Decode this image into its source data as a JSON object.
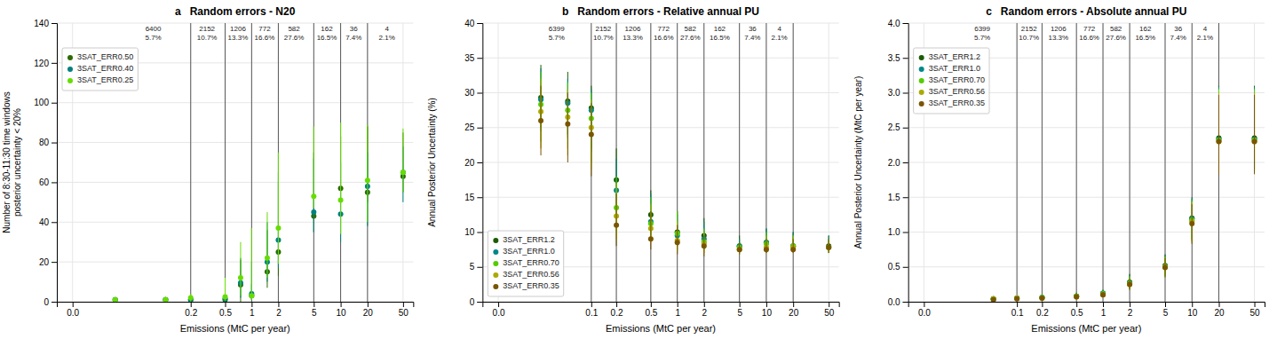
{
  "chart_data": [
    {
      "type": "scatter",
      "title": "a   Random errors - N20",
      "xlabel": "Emissions (MtC per year)",
      "ylabel": "Number of 8:30-11:30 time windows\nposterior uncertainty < 20%",
      "log": "x",
      "xlim": [
        -0.005,
        65
      ],
      "xticks": [
        {
          "value": 0.0,
          "label": "0.0"
        },
        0.2,
        0.5,
        1.0,
        2.0,
        5.0,
        10.0,
        20.0,
        50.0
      ],
      "ylim": [
        0,
        140
      ],
      "yticks": [
        0,
        20,
        40,
        60,
        80,
        100,
        120,
        140
      ],
      "grid": true,
      "legend": "upper left",
      "vlines": [
        0.2,
        0.5,
        1.0,
        2.0,
        5.0,
        10.0,
        20.0
      ],
      "annotations": [
        {
          "x": 0.07,
          "text": [
            "6400",
            "5.7%"
          ]
        },
        {
          "x": 0.31,
          "text": [
            "2152",
            "10.7%"
          ]
        },
        {
          "x": 0.7,
          "text": [
            "1206",
            "13.3%"
          ]
        },
        {
          "x": 1.4,
          "text": [
            "772",
            "16.6%"
          ]
        },
        {
          "x": 3.0,
          "text": [
            "582",
            "27.6%"
          ]
        },
        {
          "x": 7.0,
          "text": [
            "162",
            "16.5%"
          ]
        },
        {
          "x": 14.0,
          "text": [
            "36",
            "7.4%"
          ]
        },
        {
          "x": 33.0,
          "text": [
            "4",
            "2.1%"
          ]
        }
      ],
      "series": [
        {
          "name": "3SAT_ERR0.50",
          "color": "#2d6a00",
          "x": [
            0.02,
            0.1,
            0.2,
            0.5,
            0.75,
            1.0,
            1.5,
            2.0,
            5.0,
            10.0,
            20.0,
            50.0
          ],
          "values": [
            1.0,
            1.0,
            1.0,
            1.0,
            8.5,
            3.0,
            15.0,
            25.0,
            43.0,
            57.0,
            55.0,
            63.0
          ],
          "q1": [
            0.0,
            0.0,
            0.0,
            0.0,
            0.0,
            1.0,
            7.0,
            13.0,
            35.0,
            50.0,
            50.0,
            55.0
          ],
          "q3": [
            2.0,
            2.0,
            2.0,
            3.5,
            21.0,
            9.0,
            36.0,
            60.0,
            75.0,
            83.0,
            88.0,
            85.0
          ]
        },
        {
          "name": "3SAT_ERR0.40",
          "color": "#008080",
          "x": [
            0.02,
            0.1,
            0.2,
            0.5,
            0.75,
            1.0,
            1.5,
            2.0,
            5.0,
            10.0,
            20.0,
            50.0
          ],
          "values": [
            1.0,
            1.0,
            1.0,
            1.5,
            9.5,
            4.0,
            20.0,
            31.0,
            45.0,
            44.0,
            58.0,
            65.0
          ],
          "q1": [
            0.0,
            0.0,
            0.0,
            0.0,
            2.0,
            1.0,
            10.0,
            17.0,
            35.0,
            30.0,
            38.0,
            50.0
          ],
          "q3": [
            2.0,
            2.0,
            2.0,
            5.0,
            22.0,
            20.0,
            40.0,
            65.0,
            72.0,
            70.0,
            75.0,
            78.0
          ]
        },
        {
          "name": "3SAT_ERR0.25",
          "color": "#66dd00",
          "x": [
            0.02,
            0.1,
            0.2,
            0.5,
            0.75,
            1.0,
            1.5,
            2.0,
            5.0,
            10.0,
            20.0,
            50.0
          ],
          "values": [
            1.0,
            1.0,
            2.0,
            2.5,
            12.0,
            3.0,
            22.0,
            37.0,
            53.0,
            51.0,
            61.0,
            65.0
          ],
          "q1": [
            0.0,
            0.0,
            0.0,
            0.5,
            3.0,
            1.0,
            12.0,
            19.0,
            47.0,
            34.0,
            40.0,
            55.0
          ],
          "q3": [
            2.0,
            2.5,
            4.0,
            12.0,
            30.0,
            37.0,
            45.0,
            75.0,
            88.0,
            90.0,
            89.0,
            87.0
          ]
        }
      ]
    },
    {
      "type": "scatter",
      "title": "b   Random errors - Relative annual PU",
      "xlabel": "Emissions (MtC per year)",
      "ylabel": "Annual Posterior Uncertainty (%)",
      "log": "x",
      "xlim": [
        -0.005,
        65
      ],
      "xticks": [
        {
          "value": 0.0,
          "label": "0.0"
        },
        0.1,
        0.2,
        0.5,
        1.0,
        2.0,
        5.0,
        10.0,
        20.0,
        50.0
      ],
      "ylim": [
        0,
        40
      ],
      "yticks": [
        0,
        5,
        10,
        15,
        20,
        25,
        30,
        35,
        40
      ],
      "grid": true,
      "legend": "lower left",
      "vlines": [
        0.1,
        0.2,
        0.5,
        1.0,
        2.0,
        5.0,
        10.0,
        20.0
      ],
      "annotations": [
        {
          "x": 0.035,
          "text": [
            "6399",
            "5.7%"
          ]
        },
        {
          "x": 0.14,
          "text": [
            "2152",
            "10.7%"
          ]
        },
        {
          "x": 0.31,
          "text": [
            "1206",
            "13.3%"
          ]
        },
        {
          "x": 0.7,
          "text": [
            "772",
            "16.6%"
          ]
        },
        {
          "x": 1.4,
          "text": [
            "582",
            "27.6%"
          ]
        },
        {
          "x": 3.0,
          "text": [
            "162",
            "16.5%"
          ]
        },
        {
          "x": 7.0,
          "text": [
            "36",
            "7.4%"
          ]
        },
        {
          "x": 14.0,
          "text": [
            "4",
            "2.1%"
          ]
        }
      ],
      "series": [
        {
          "name": "3SAT_ERR1.2",
          "color": "#1a5c00",
          "x": [
            0.02,
            0.05,
            0.1,
            0.2,
            0.5,
            1.0,
            2.0,
            5.0,
            10.0,
            20.0,
            50.0
          ],
          "values": [
            29.3,
            28.8,
            27.8,
            17.5,
            12.5,
            10.0,
            9.5,
            8.0,
            8.5,
            8.0,
            8.0
          ],
          "q1": [
            25.0,
            24.0,
            22.0,
            13.0,
            10.0,
            8.0,
            8.0,
            7.5,
            7.5,
            7.5,
            7.5
          ],
          "q3": [
            34.0,
            33.0,
            31.0,
            22.0,
            16.0,
            13.0,
            12.0,
            9.5,
            10.5,
            10.0,
            9.5
          ]
        },
        {
          "name": "3SAT_ERR1.0",
          "color": "#008888",
          "x": [
            0.02,
            0.05,
            0.1,
            0.2,
            0.5,
            1.0,
            2.0,
            5.0,
            10.0,
            20.0,
            50.0
          ],
          "values": [
            29.0,
            28.5,
            27.5,
            16.0,
            11.5,
            9.5,
            9.0,
            8.0,
            8.5,
            8.0,
            7.8
          ],
          "q1": [
            24.5,
            23.5,
            21.5,
            12.0,
            9.5,
            8.0,
            7.5,
            7.5,
            7.5,
            7.5,
            7.0
          ],
          "q3": [
            33.5,
            32.0,
            30.5,
            20.5,
            15.5,
            12.5,
            11.5,
            9.0,
            10.5,
            10.0,
            9.5
          ]
        },
        {
          "name": "3SAT_ERR0.70",
          "color": "#55cc00",
          "x": [
            0.02,
            0.05,
            0.1,
            0.2,
            0.5,
            1.0,
            2.0,
            5.0,
            10.0,
            20.0,
            50.0
          ],
          "values": [
            28.3,
            27.5,
            26.3,
            13.5,
            11.2,
            9.8,
            8.6,
            7.8,
            8.3,
            8.0,
            7.8
          ],
          "q1": [
            23.0,
            22.0,
            20.0,
            10.0,
            9.0,
            7.5,
            7.0,
            7.0,
            7.0,
            7.2,
            7.0
          ],
          "q3": [
            33.0,
            31.5,
            30.0,
            18.0,
            15.0,
            13.0,
            10.5,
            8.5,
            10.0,
            9.5,
            9.0
          ]
        },
        {
          "name": "3SAT_ERR0.56",
          "color": "#aaaa00",
          "x": [
            0.02,
            0.05,
            0.1,
            0.2,
            0.5,
            1.0,
            2.0,
            5.0,
            10.0,
            20.0,
            50.0
          ],
          "values": [
            27.3,
            26.5,
            25.0,
            12.3,
            10.5,
            8.8,
            8.3,
            7.5,
            7.8,
            7.8,
            7.8
          ],
          "q1": [
            22.0,
            21.0,
            19.0,
            9.0,
            8.5,
            7.2,
            7.0,
            6.8,
            7.0,
            7.0,
            7.0
          ],
          "q3": [
            32.0,
            30.5,
            29.0,
            17.0,
            14.0,
            11.5,
            10.0,
            8.5,
            9.5,
            9.5,
            9.0
          ]
        },
        {
          "name": "3SAT_ERR0.35",
          "color": "#7a5500",
          "x": [
            0.02,
            0.05,
            0.1,
            0.2,
            0.5,
            1.0,
            2.0,
            5.0,
            10.0,
            20.0,
            50.0
          ],
          "values": [
            26.0,
            25.5,
            24.0,
            11.0,
            9.0,
            8.5,
            8.0,
            7.5,
            7.5,
            7.5,
            7.8
          ],
          "q1": [
            21.0,
            20.0,
            18.0,
            8.0,
            7.5,
            6.8,
            6.5,
            6.8,
            7.0,
            7.0,
            7.0
          ],
          "q3": [
            31.0,
            30.0,
            28.5,
            15.5,
            13.0,
            11.0,
            9.5,
            8.5,
            9.0,
            9.0,
            9.0
          ]
        }
      ]
    },
    {
      "type": "scatter",
      "title": "c   Random errors - Absolute annual PU",
      "xlabel": "Emissions (MtC per year)",
      "ylabel": "Annual Posterior Uncertainty (MtC per year)",
      "log": "x",
      "xlim": [
        -0.005,
        65
      ],
      "xticks": [
        {
          "value": 0.0,
          "label": "0.0"
        },
        0.1,
        0.2,
        0.5,
        1.0,
        2.0,
        5.0,
        10.0,
        20.0,
        50.0
      ],
      "ylim": [
        0,
        4.0
      ],
      "yticks": [
        {
          "value": 0.0,
          "label": "0.0"
        },
        0.5,
        {
          "value": 1.0,
          "label": "1.0"
        },
        1.5,
        {
          "value": 2.0,
          "label": "2.0"
        },
        2.5,
        {
          "value": 3.0,
          "label": "3.0"
        },
        3.5,
        {
          "value": 4.0,
          "label": "4.0"
        }
      ],
      "grid": true,
      "legend": "upper left",
      "vlines": [
        0.1,
        0.2,
        0.5,
        1.0,
        2.0,
        5.0,
        10.0,
        20.0
      ],
      "annotations": [
        {
          "x": 0.035,
          "text": [
            "6399",
            "5.7%"
          ]
        },
        {
          "x": 0.14,
          "text": [
            "2152",
            "10.7%"
          ]
        },
        {
          "x": 0.31,
          "text": [
            "1206",
            "13.3%"
          ]
        },
        {
          "x": 0.7,
          "text": [
            "772",
            "16.6%"
          ]
        },
        {
          "x": 1.4,
          "text": [
            "582",
            "27.6%"
          ]
        },
        {
          "x": 3.0,
          "text": [
            "162",
            "16.5%"
          ]
        },
        {
          "x": 7.0,
          "text": [
            "36",
            "7.4%"
          ]
        },
        {
          "x": 14.0,
          "text": [
            "4",
            "2.1%"
          ]
        }
      ],
      "series": [
        {
          "name": "3SAT_ERR1.2",
          "color": "#1a5c00",
          "x": [
            0.05,
            0.1,
            0.2,
            0.5,
            1.0,
            2.0,
            5.0,
            10.0,
            20.0,
            50.0
          ],
          "values": [
            0.04,
            0.05,
            0.06,
            0.08,
            0.12,
            0.28,
            0.52,
            1.2,
            2.35,
            2.35
          ],
          "q1": [
            0.02,
            0.03,
            0.04,
            0.06,
            0.09,
            0.2,
            0.38,
            0.9,
            1.9,
            1.9
          ],
          "q3": [
            0.07,
            0.08,
            0.09,
            0.13,
            0.17,
            0.4,
            0.68,
            1.5,
            3.1,
            3.1
          ]
        },
        {
          "name": "3SAT_ERR1.0",
          "color": "#008888",
          "x": [
            0.05,
            0.1,
            0.2,
            0.5,
            1.0,
            2.0,
            5.0,
            10.0,
            20.0,
            50.0
          ],
          "values": [
            0.04,
            0.05,
            0.06,
            0.08,
            0.12,
            0.27,
            0.51,
            1.19,
            2.33,
            2.33
          ],
          "q1": [
            0.02,
            0.03,
            0.04,
            0.06,
            0.09,
            0.19,
            0.37,
            0.88,
            1.88,
            1.88
          ],
          "q3": [
            0.07,
            0.08,
            0.09,
            0.12,
            0.17,
            0.38,
            0.67,
            1.48,
            3.08,
            3.08
          ]
        },
        {
          "name": "3SAT_ERR0.70",
          "color": "#55cc00",
          "x": [
            0.05,
            0.1,
            0.2,
            0.5,
            1.0,
            2.0,
            5.0,
            10.0,
            20.0,
            50.0
          ],
          "values": [
            0.04,
            0.05,
            0.06,
            0.08,
            0.11,
            0.26,
            0.5,
            1.17,
            2.32,
            2.32
          ],
          "q1": [
            0.02,
            0.03,
            0.04,
            0.06,
            0.08,
            0.18,
            0.36,
            0.86,
            1.86,
            1.86
          ],
          "q3": [
            0.06,
            0.07,
            0.09,
            0.12,
            0.16,
            0.37,
            0.65,
            1.45,
            3.05,
            3.05
          ]
        },
        {
          "name": "3SAT_ERR0.56",
          "color": "#aaaa00",
          "x": [
            0.05,
            0.1,
            0.2,
            0.5,
            1.0,
            2.0,
            5.0,
            10.0,
            20.0,
            50.0
          ],
          "values": [
            0.04,
            0.05,
            0.05,
            0.07,
            0.1,
            0.25,
            0.5,
            1.15,
            2.3,
            2.3
          ],
          "q1": [
            0.02,
            0.03,
            0.04,
            0.05,
            0.08,
            0.18,
            0.36,
            0.85,
            1.85,
            1.85
          ],
          "q3": [
            0.06,
            0.07,
            0.08,
            0.11,
            0.15,
            0.35,
            0.64,
            1.43,
            3.0,
            3.0
          ]
        },
        {
          "name": "3SAT_ERR0.35",
          "color": "#7a5500",
          "x": [
            0.05,
            0.1,
            0.2,
            0.5,
            1.0,
            2.0,
            5.0,
            10.0,
            20.0,
            50.0
          ],
          "values": [
            0.03,
            0.04,
            0.05,
            0.07,
            0.1,
            0.25,
            0.49,
            1.12,
            2.3,
            2.3
          ],
          "q1": [
            0.02,
            0.03,
            0.03,
            0.05,
            0.08,
            0.17,
            0.35,
            0.83,
            1.83,
            1.83
          ],
          "q3": [
            0.06,
            0.06,
            0.07,
            0.11,
            0.14,
            0.33,
            0.63,
            1.4,
            2.97,
            2.97
          ]
        }
      ]
    }
  ]
}
